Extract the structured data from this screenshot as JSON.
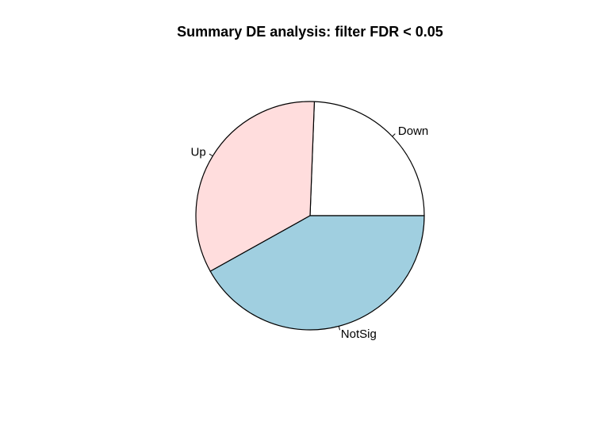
{
  "chart_data": {
    "type": "pie",
    "title": "Summary DE analysis: filter FDR < 0.05",
    "slices": [
      {
        "label": "Down",
        "value": 0.244,
        "color": "#FFFFFF"
      },
      {
        "label": "Up",
        "value": 0.337,
        "color": "#FFDDDD"
      },
      {
        "label": "NotSig",
        "value": 0.419,
        "color": "#A0CFE0"
      }
    ],
    "start_angle_deg": 0,
    "direction": "counterclockwise",
    "border_color": "#000000"
  }
}
